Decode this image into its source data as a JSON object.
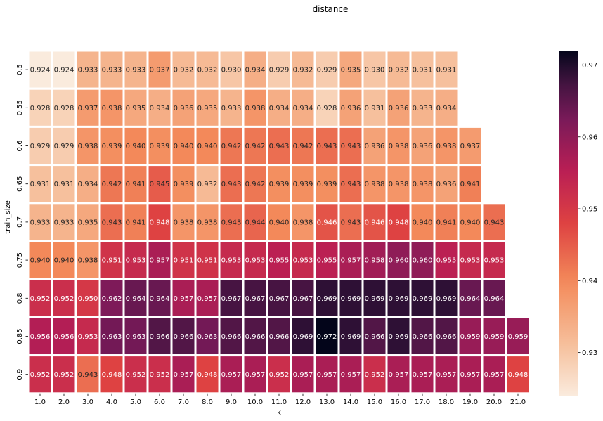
{
  "chart_data": {
    "type": "heatmap",
    "title": "distance",
    "xlabel": "k",
    "ylabel": "train_size",
    "x_categories": [
      "1.0",
      "2.0",
      "3.0",
      "4.0",
      "5.0",
      "6.0",
      "7.0",
      "8.0",
      "9.0",
      "10.0",
      "11.0",
      "12.0",
      "13.0",
      "14.0",
      "15.0",
      "16.0",
      "17.0",
      "18.0",
      "19.0",
      "20.0",
      "21.0"
    ],
    "y_categories": [
      "0.5",
      "0.55",
      "0.6",
      "0.65",
      "0.7",
      "0.75",
      "0.8",
      "0.85",
      "0.9"
    ],
    "values": [
      [
        0.924,
        0.924,
        0.933,
        0.933,
        0.933,
        0.937,
        0.932,
        0.932,
        0.93,
        0.934,
        0.929,
        0.932,
        0.929,
        0.935,
        0.93,
        0.932,
        0.931,
        0.931,
        null,
        null,
        null
      ],
      [
        0.928,
        0.928,
        0.937,
        0.938,
        0.935,
        0.934,
        0.936,
        0.935,
        0.933,
        0.938,
        0.934,
        0.934,
        0.928,
        0.936,
        0.931,
        0.936,
        0.933,
        0.934,
        null,
        null,
        null
      ],
      [
        0.929,
        0.929,
        0.938,
        0.939,
        0.94,
        0.939,
        0.94,
        0.94,
        0.942,
        0.942,
        0.943,
        0.942,
        0.943,
        0.943,
        0.936,
        0.938,
        0.936,
        0.938,
        0.937,
        null,
        null
      ],
      [
        0.931,
        0.931,
        0.934,
        0.942,
        0.941,
        0.945,
        0.939,
        0.932,
        0.943,
        0.942,
        0.939,
        0.939,
        0.939,
        0.943,
        0.938,
        0.938,
        0.938,
        0.936,
        0.941,
        null,
        null
      ],
      [
        0.933,
        0.933,
        0.935,
        0.943,
        0.941,
        0.948,
        0.938,
        0.938,
        0.943,
        0.944,
        0.94,
        0.938,
        0.946,
        0.943,
        0.946,
        0.948,
        0.94,
        0.941,
        0.94,
        0.943,
        null
      ],
      [
        0.94,
        0.94,
        0.938,
        0.951,
        0.953,
        0.957,
        0.951,
        0.951,
        0.953,
        0.953,
        0.955,
        0.953,
        0.955,
        0.957,
        0.958,
        0.96,
        0.96,
        0.955,
        0.953,
        0.953,
        null
      ],
      [
        0.952,
        0.952,
        0.95,
        0.962,
        0.964,
        0.964,
        0.957,
        0.957,
        0.967,
        0.967,
        0.967,
        0.967,
        0.969,
        0.969,
        0.969,
        0.969,
        0.969,
        0.969,
        0.964,
        0.964,
        null
      ],
      [
        0.956,
        0.956,
        0.953,
        0.963,
        0.963,
        0.966,
        0.966,
        0.963,
        0.966,
        0.966,
        0.966,
        0.969,
        0.972,
        0.969,
        0.966,
        0.969,
        0.966,
        0.966,
        0.959,
        0.959,
        0.959
      ],
      [
        0.952,
        0.952,
        0.943,
        0.948,
        0.952,
        0.952,
        0.957,
        0.948,
        0.957,
        0.957,
        0.952,
        0.957,
        0.957,
        0.957,
        0.952,
        0.957,
        0.957,
        0.957,
        0.957,
        0.957,
        0.948
      ]
    ],
    "value_format": "3 decimals",
    "colormap": "rocket_r",
    "vmin": 0.924,
    "vmax": 0.972,
    "colorbar_ticks": [
      0.93,
      0.94,
      0.95,
      0.96,
      0.97
    ],
    "colorbar_tick_labels": [
      "0.93",
      "0.94",
      "0.95",
      "0.96",
      "0.97"
    ],
    "annotated": true,
    "cell_border_color": "#ffffff"
  }
}
